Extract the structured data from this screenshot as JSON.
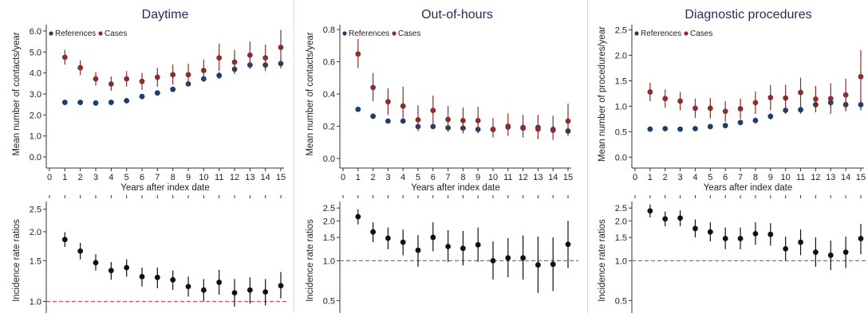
{
  "colors": {
    "references": "#1f3e66",
    "cases": "#8b2d2d",
    "irr_point": "#111111",
    "reference_line": "#d0506e",
    "title": "#1f2d5a"
  },
  "chart_data": [
    {
      "type": "scatter",
      "title": "Daytime",
      "xlabel": "Years after index date",
      "ylabel": "Mean number of contacts/year",
      "x_ticks": [
        0,
        1,
        2,
        3,
        4,
        5,
        6,
        7,
        8,
        9,
        10,
        11,
        12,
        13,
        14,
        15
      ],
      "xlim": [
        0,
        15
      ],
      "ylim": [
        -0.3,
        6.3
      ],
      "y_ticks": [
        "0.0",
        "1.0",
        "2.0",
        "3.0",
        "4.0",
        "5.0",
        "6.0"
      ],
      "legend_position": "top-left",
      "series": [
        {
          "name": "References",
          "x": [
            1,
            2,
            3,
            4,
            5,
            6,
            7,
            8,
            9,
            10,
            11,
            12,
            13,
            14,
            15
          ],
          "values": [
            2.6,
            2.6,
            2.57,
            2.6,
            2.68,
            2.88,
            3.05,
            3.22,
            3.48,
            3.72,
            3.88,
            4.18,
            4.38,
            4.38,
            4.45
          ],
          "lower": [
            2.55,
            2.55,
            2.52,
            2.55,
            2.62,
            2.8,
            2.97,
            3.12,
            3.36,
            3.58,
            3.72,
            4.02,
            4.2,
            4.18,
            4.22
          ],
          "upper": [
            2.65,
            2.65,
            2.62,
            2.65,
            2.74,
            2.96,
            3.13,
            3.32,
            3.6,
            3.86,
            4.04,
            4.34,
            4.56,
            4.58,
            4.68
          ]
        },
        {
          "name": "Cases",
          "x": [
            1,
            2,
            3,
            4,
            5,
            6,
            7,
            8,
            9,
            10,
            11,
            12,
            13,
            14,
            15
          ],
          "values": [
            4.75,
            4.25,
            3.72,
            3.48,
            3.72,
            3.6,
            3.8,
            3.92,
            3.92,
            4.12,
            4.72,
            4.52,
            4.85,
            4.72,
            5.22
          ],
          "lower": [
            4.4,
            3.9,
            3.4,
            3.15,
            3.35,
            3.2,
            3.35,
            3.45,
            3.4,
            3.6,
            4.1,
            3.95,
            4.2,
            4.1,
            4.4
          ],
          "upper": [
            5.1,
            4.6,
            4.04,
            3.84,
            4.09,
            4.0,
            4.25,
            4.4,
            4.44,
            4.64,
            5.4,
            5.1,
            5.5,
            5.35,
            6.05
          ]
        }
      ],
      "irr": {
        "ylabel": "Incidence rate ratios",
        "scale": "log",
        "ylim": [
          0.95,
          2.7
        ],
        "y_ticks": [
          "1.0",
          "1.5",
          "2.0",
          "2.5"
        ],
        "reference": 1.0,
        "x": [
          1,
          2,
          3,
          4,
          5,
          6,
          7,
          8,
          9,
          10,
          11,
          12,
          13,
          14,
          15
        ],
        "values": [
          1.85,
          1.65,
          1.47,
          1.36,
          1.4,
          1.28,
          1.27,
          1.24,
          1.16,
          1.12,
          1.21,
          1.09,
          1.12,
          1.1,
          1.17
        ],
        "lower": [
          1.72,
          1.52,
          1.36,
          1.24,
          1.28,
          1.16,
          1.14,
          1.12,
          1.05,
          1.0,
          1.07,
          0.95,
          0.98,
          0.96,
          1.03
        ],
        "upper": [
          1.99,
          1.79,
          1.6,
          1.48,
          1.52,
          1.4,
          1.4,
          1.36,
          1.28,
          1.25,
          1.37,
          1.25,
          1.27,
          1.25,
          1.34
        ]
      }
    },
    {
      "type": "scatter",
      "title": "Out-of-hours",
      "xlabel": "Years after index date",
      "ylabel": "Mean number of contacts/year",
      "x_ticks": [
        0,
        1,
        2,
        3,
        4,
        5,
        6,
        7,
        8,
        9,
        10,
        11,
        12,
        13,
        14,
        15
      ],
      "xlim": [
        0,
        15
      ],
      "ylim": [
        -0.03,
        0.83
      ],
      "y_ticks": [
        "0.0",
        "0.2",
        "0.4",
        "0.6",
        "0.8"
      ],
      "legend_position": "top-left",
      "series": [
        {
          "name": "References",
          "x": [
            1,
            2,
            3,
            4,
            5,
            6,
            7,
            8,
            9,
            10,
            11,
            12,
            13,
            14,
            15
          ],
          "values": [
            0.305,
            0.262,
            0.232,
            0.232,
            0.198,
            0.198,
            0.19,
            0.188,
            0.18,
            0.18,
            0.195,
            0.188,
            0.192,
            0.18,
            0.17
          ],
          "lower": [
            0.29,
            0.248,
            0.22,
            0.22,
            0.185,
            0.185,
            0.177,
            0.175,
            0.166,
            0.165,
            0.178,
            0.17,
            0.172,
            0.16,
            0.148
          ],
          "upper": [
            0.32,
            0.276,
            0.244,
            0.244,
            0.211,
            0.211,
            0.203,
            0.201,
            0.194,
            0.195,
            0.212,
            0.206,
            0.212,
            0.2,
            0.192
          ]
        },
        {
          "name": "Cases",
          "x": [
            1,
            2,
            3,
            4,
            5,
            6,
            7,
            8,
            9,
            10,
            11,
            12,
            13,
            14,
            15
          ],
          "values": [
            0.648,
            0.44,
            0.352,
            0.325,
            0.24,
            0.298,
            0.242,
            0.235,
            0.235,
            0.18,
            0.2,
            0.192,
            0.182,
            0.175,
            0.232
          ],
          "lower": [
            0.56,
            0.355,
            0.27,
            0.25,
            0.17,
            0.205,
            0.165,
            0.155,
            0.155,
            0.13,
            0.14,
            0.13,
            0.12,
            0.115,
            0.14
          ],
          "upper": [
            0.74,
            0.53,
            0.435,
            0.445,
            0.33,
            0.39,
            0.325,
            0.315,
            0.32,
            0.25,
            0.28,
            0.27,
            0.27,
            0.265,
            0.34
          ]
        }
      ],
      "irr": {
        "ylabel": "Incidence rate ratios",
        "scale": "log",
        "ylim": [
          0.45,
          2.8
        ],
        "y_ticks": [
          "0.5",
          "1.0",
          "1.5",
          "2.0",
          "2.5"
        ],
        "reference": 1.0,
        "x": [
          1,
          2,
          3,
          4,
          5,
          6,
          7,
          8,
          9,
          10,
          11,
          12,
          13,
          14,
          15
        ],
        "values": [
          2.15,
          1.65,
          1.48,
          1.38,
          1.2,
          1.5,
          1.28,
          1.24,
          1.32,
          1.0,
          1.05,
          1.05,
          0.93,
          0.94,
          1.33
        ],
        "lower": [
          1.88,
          1.38,
          1.22,
          1.1,
          0.9,
          1.18,
          0.98,
          0.92,
          0.98,
          0.72,
          0.75,
          0.72,
          0.57,
          0.59,
          0.88
        ],
        "upper": [
          2.45,
          1.95,
          1.78,
          1.72,
          1.56,
          1.95,
          1.7,
          1.68,
          1.78,
          1.4,
          1.48,
          1.55,
          1.52,
          1.5,
          2.0
        ]
      }
    },
    {
      "type": "scatter",
      "title": "Diagnostic procedures",
      "xlabel": "Years after index date",
      "ylabel": "Mean number of procedures/year",
      "x_ticks": [
        0,
        1,
        2,
        3,
        4,
        5,
        6,
        7,
        8,
        9,
        10,
        11,
        12,
        13,
        14,
        15
      ],
      "xlim": [
        0,
        15
      ],
      "ylim": [
        -0.12,
        2.6
      ],
      "y_ticks": [
        "0.0",
        "0.5",
        "1.0",
        "1.5",
        "2.0",
        "2.5"
      ],
      "legend_position": "top-left",
      "series": [
        {
          "name": "References",
          "x": [
            1,
            2,
            3,
            4,
            5,
            6,
            7,
            8,
            9,
            10,
            11,
            12,
            13,
            14,
            15
          ],
          "values": [
            0.55,
            0.56,
            0.55,
            0.56,
            0.6,
            0.62,
            0.68,
            0.72,
            0.8,
            0.92,
            0.93,
            1.03,
            1.07,
            1.03,
            1.03
          ],
          "lower": [
            0.53,
            0.54,
            0.53,
            0.54,
            0.57,
            0.58,
            0.63,
            0.66,
            0.74,
            0.85,
            0.85,
            0.94,
            0.97,
            0.93,
            0.92
          ],
          "upper": [
            0.57,
            0.58,
            0.57,
            0.58,
            0.63,
            0.66,
            0.73,
            0.78,
            0.86,
            0.99,
            1.01,
            1.12,
            1.17,
            1.13,
            1.14
          ]
        },
        {
          "name": "Cases",
          "x": [
            1,
            2,
            3,
            4,
            5,
            6,
            7,
            8,
            9,
            10,
            11,
            12,
            13,
            14,
            15
          ],
          "values": [
            1.28,
            1.15,
            1.1,
            0.96,
            0.96,
            0.9,
            0.95,
            1.07,
            1.17,
            1.16,
            1.27,
            1.14,
            1.15,
            1.22,
            1.58
          ],
          "lower": [
            1.1,
            0.97,
            0.92,
            0.77,
            0.76,
            0.7,
            0.75,
            0.85,
            0.92,
            0.9,
            0.98,
            0.88,
            0.85,
            0.9,
            1.05
          ],
          "upper": [
            1.46,
            1.33,
            1.28,
            1.15,
            1.16,
            1.1,
            1.15,
            1.29,
            1.42,
            1.42,
            1.56,
            1.4,
            1.45,
            1.54,
            2.1
          ]
        }
      ],
      "irr": {
        "ylabel": "Incidence rate ratios",
        "scale": "log",
        "ylim": [
          0.45,
          2.8
        ],
        "y_ticks": [
          "0.5",
          "1.0",
          "1.5",
          "2.0",
          "2.5"
        ],
        "reference": 1.0,
        "x": [
          1,
          2,
          3,
          4,
          5,
          6,
          7,
          8,
          9,
          10,
          11,
          12,
          13,
          14,
          15
        ],
        "values": [
          2.38,
          2.07,
          2.1,
          1.75,
          1.65,
          1.47,
          1.47,
          1.6,
          1.58,
          1.23,
          1.38,
          1.16,
          1.1,
          1.16,
          1.47
        ],
        "lower": [
          2.12,
          1.82,
          1.82,
          1.5,
          1.4,
          1.22,
          1.22,
          1.32,
          1.3,
          1.0,
          1.1,
          0.9,
          0.85,
          0.88,
          1.12
        ],
        "upper": [
          2.66,
          2.35,
          2.4,
          2.05,
          1.95,
          1.78,
          1.78,
          1.95,
          1.92,
          1.52,
          1.72,
          1.5,
          1.42,
          1.52,
          1.9
        ]
      }
    }
  ]
}
